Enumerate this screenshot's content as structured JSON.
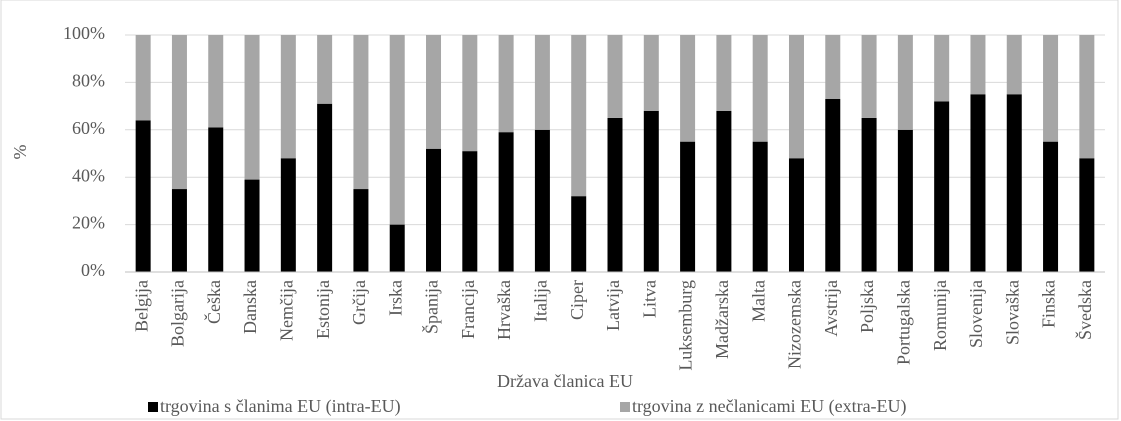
{
  "chart_data": {
    "type": "stacked_bar_100",
    "x_label": "Država članica EU",
    "y_label": "%",
    "categories": [
      "Belgija",
      "Bolgarija",
      "Češka",
      "Danska",
      "Nemčija",
      "Estonija",
      "Grčija",
      "Irska",
      "Španija",
      "Francija",
      "Hrvaška",
      "Italija",
      "Ciper",
      "Latvija",
      "Litva",
      "Luksemburg",
      "Madžarska",
      "Malta",
      "Nizozemska",
      "Avstrija",
      "Poljska",
      "Portugalska",
      "Romunija",
      "Slovenija",
      "Slovaška",
      "Finska",
      "Švedska"
    ],
    "series": [
      {
        "name": "trgovina s članima EU (intra-EU)",
        "color": "#000000",
        "values": [
          64,
          35,
          61,
          39,
          48,
          71,
          35,
          20,
          52,
          51,
          59,
          60,
          32,
          65,
          68,
          55,
          68,
          55,
          48,
          73,
          65,
          60,
          72,
          75,
          75,
          55,
          48
        ]
      },
      {
        "name": "trgovina z nečlanicami EU (extra-EU)",
        "color": "#a6a6a6",
        "values": [
          36,
          65,
          39,
          61,
          52,
          29,
          65,
          80,
          48,
          49,
          41,
          40,
          68,
          35,
          32,
          45,
          32,
          45,
          52,
          27,
          35,
          40,
          28,
          25,
          25,
          45,
          52
        ]
      }
    ],
    "ylim": [
      0,
      100
    ],
    "yticks": [
      {
        "value": 0,
        "label": "0%"
      },
      {
        "value": 20,
        "label": "20%"
      },
      {
        "value": 40,
        "label": "40%"
      },
      {
        "value": 60,
        "label": "60%"
      },
      {
        "value": 80,
        "label": "80%"
      },
      {
        "value": 100,
        "label": "100%"
      }
    ],
    "grid": true,
    "legend": "bottom"
  }
}
